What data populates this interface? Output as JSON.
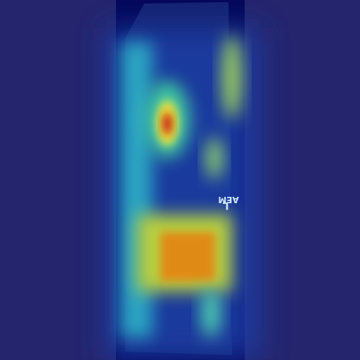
{
  "image": {
    "marker_letter": "L",
    "marker_text": "AEM"
  }
}
